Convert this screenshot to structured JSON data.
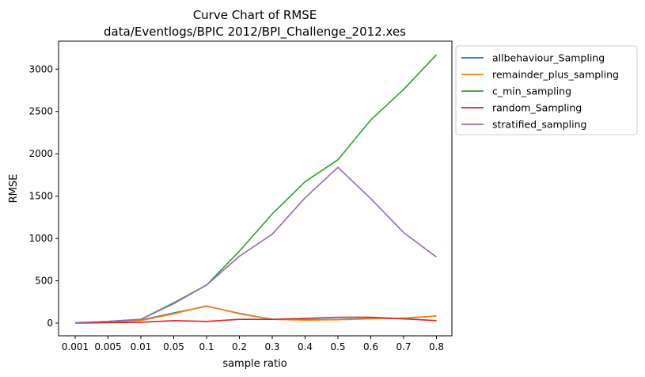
{
  "chart_data": {
    "type": "line",
    "title": "Curve Chart of RMSE",
    "subtitle": "data/Eventlogs/BPIC 2012/BPI_Challenge_2012.xes",
    "xlabel": "sample ratio",
    "ylabel": "RMSE",
    "categories": [
      "0.001",
      "0.005",
      "0.01",
      "0.05",
      "0.1",
      "0.2",
      "0.3",
      "0.4",
      "0.5",
      "0.6",
      "0.7",
      "0.8"
    ],
    "ylim": [
      -150,
      3330
    ],
    "yticks": [
      0,
      500,
      1000,
      1500,
      2000,
      2500,
      3000
    ],
    "grid": false,
    "legend_position": "outside-right-top",
    "series": [
      {
        "name": "allbehaviour_Sampling",
        "color": "#1f77b4",
        "values": [
          5,
          15,
          35,
          120,
          200,
          115,
          45,
          40,
          45,
          55,
          55,
          85
        ]
      },
      {
        "name": "remainder_plus_sampling",
        "color": "#ff7f0e",
        "values": [
          5,
          15,
          30,
          110,
          205,
          110,
          45,
          35,
          40,
          50,
          60,
          85
        ]
      },
      {
        "name": "c_min_sampling",
        "color": "#2ca02c",
        "values": [
          5,
          20,
          45,
          240,
          450,
          850,
          1290,
          1670,
          1930,
          2400,
          2760,
          3170
        ]
      },
      {
        "name": "random_Sampling",
        "color": "#d62728",
        "values": [
          0,
          5,
          10,
          30,
          20,
          45,
          45,
          55,
          70,
          70,
          50,
          30
        ]
      },
      {
        "name": "stratified_sampling",
        "color": "#9467bd",
        "values": [
          5,
          20,
          45,
          230,
          450,
          790,
          1050,
          1480,
          1840,
          1470,
          1070,
          780
        ]
      }
    ]
  }
}
